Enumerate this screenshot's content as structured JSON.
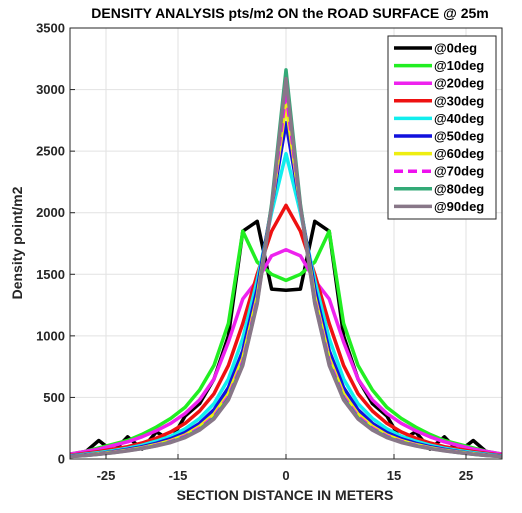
{
  "chart_data": {
    "type": "line",
    "title": "DENSITY ANALYSIS pts/m2 ON the ROAD SURFACE @ 25m",
    "xlabel": "SECTION DISTANCE IN METERS",
    "ylabel": "Density point/m2",
    "xlim": [
      -30,
      30
    ],
    "ylim": [
      0,
      3500
    ],
    "xticks": [
      -25,
      -15,
      0,
      15,
      25
    ],
    "xtick_labels": [
      "-25",
      "-15",
      "0",
      "15",
      "25"
    ],
    "yticks": [
      0,
      500,
      1000,
      1500,
      2000,
      2500,
      3000,
      3500
    ],
    "ytick_labels": [
      "0",
      "500",
      "1000",
      "1500",
      "2000",
      "2500",
      "3000",
      "3500"
    ],
    "grid": true,
    "legend_position": "top-right",
    "x": [
      -30,
      -28,
      -26,
      -24,
      -22,
      -20,
      -18,
      -16,
      -14,
      -12,
      -10,
      -8,
      -6,
      -4,
      -2,
      0,
      2,
      4,
      6,
      8,
      10,
      12,
      14,
      16,
      18,
      20,
      22,
      24,
      26,
      28,
      30
    ],
    "series": [
      {
        "name": "@0deg",
        "color": "#000000",
        "dash": false,
        "values": [
          30,
          50,
          150,
          60,
          180,
          80,
          220,
          150,
          350,
          450,
          650,
          1000,
          1850,
          1930,
          1380,
          1370,
          1380,
          1930,
          1850,
          1000,
          650,
          450,
          350,
          150,
          220,
          80,
          180,
          60,
          150,
          50,
          30
        ]
      },
      {
        "name": "@10deg",
        "color": "#22ee22",
        "dash": false,
        "values": [
          40,
          60,
          90,
          120,
          150,
          200,
          260,
          330,
          420,
          560,
          760,
          1100,
          1850,
          1600,
          1500,
          1450,
          1500,
          1600,
          1850,
          1100,
          760,
          560,
          420,
          330,
          260,
          200,
          150,
          120,
          90,
          60,
          40
        ]
      },
      {
        "name": "@20deg",
        "color": "#ee22ee",
        "dash": false,
        "values": [
          40,
          60,
          80,
          110,
          140,
          180,
          230,
          290,
          370,
          480,
          650,
          950,
          1300,
          1450,
          1650,
          1700,
          1650,
          1450,
          1300,
          950,
          650,
          480,
          370,
          290,
          230,
          180,
          140,
          110,
          80,
          60,
          40
        ]
      },
      {
        "name": "@30deg",
        "color": "#ee1111",
        "dash": false,
        "values": [
          30,
          45,
          60,
          80,
          100,
          130,
          170,
          220,
          290,
          390,
          530,
          760,
          1100,
          1500,
          1850,
          2060,
          1850,
          1500,
          1100,
          760,
          530,
          390,
          290,
          220,
          170,
          130,
          100,
          80,
          60,
          45,
          30
        ]
      },
      {
        "name": "@40deg",
        "color": "#11eeee",
        "dash": false,
        "values": [
          25,
          38,
          52,
          68,
          88,
          112,
          145,
          185,
          245,
          330,
          450,
          650,
          980,
          1450,
          2000,
          2480,
          2000,
          1450,
          980,
          650,
          450,
          330,
          245,
          185,
          145,
          112,
          88,
          68,
          52,
          38,
          25
        ]
      },
      {
        "name": "@50deg",
        "color": "#1111dd",
        "dash": false,
        "values": [
          22,
          33,
          45,
          60,
          78,
          100,
          128,
          165,
          215,
          290,
          400,
          580,
          880,
          1380,
          2050,
          2730,
          2050,
          1380,
          880,
          580,
          400,
          290,
          215,
          165,
          128,
          100,
          78,
          60,
          45,
          33,
          22
        ]
      },
      {
        "name": "@60deg",
        "color": "#eeee11",
        "dash": false,
        "values": [
          20,
          30,
          42,
          56,
          72,
          92,
          118,
          150,
          195,
          265,
          365,
          530,
          820,
          1320,
          2050,
          2880,
          2050,
          1320,
          820,
          530,
          365,
          265,
          195,
          150,
          118,
          92,
          72,
          56,
          42,
          30,
          20
        ]
      },
      {
        "name": "@70deg",
        "color": "#ee11ee",
        "dash": true,
        "values": [
          20,
          29,
          40,
          54,
          70,
          88,
          112,
          142,
          185,
          250,
          345,
          505,
          790,
          1290,
          2050,
          2980,
          2050,
          1290,
          790,
          505,
          345,
          250,
          185,
          142,
          112,
          88,
          70,
          54,
          40,
          29,
          20
        ]
      },
      {
        "name": "@80deg",
        "color": "#33aa77",
        "dash": false,
        "values": [
          20,
          28,
          38,
          52,
          67,
          85,
          108,
          137,
          178,
          240,
          332,
          490,
          770,
          1270,
          2070,
          3160,
          2070,
          1270,
          770,
          490,
          332,
          240,
          178,
          137,
          108,
          85,
          67,
          52,
          38,
          28,
          20
        ]
      },
      {
        "name": "@90deg",
        "color": "#887788",
        "dash": false,
        "values": [
          20,
          28,
          38,
          51,
          66,
          84,
          106,
          134,
          174,
          235,
          325,
          480,
          760,
          1260,
          2050,
          3090,
          2050,
          1260,
          760,
          480,
          325,
          235,
          174,
          134,
          106,
          84,
          66,
          51,
          38,
          28,
          20
        ]
      }
    ]
  }
}
